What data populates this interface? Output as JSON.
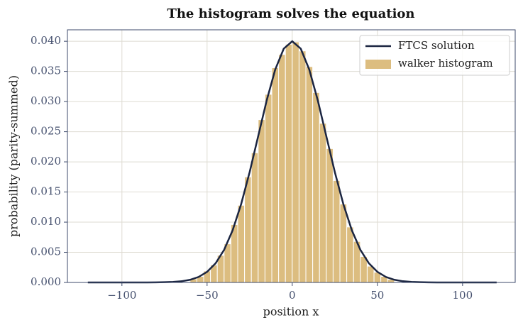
{
  "chart_data": {
    "type": "histogram",
    "title": "The histogram solves the equation",
    "xlabel": "position x",
    "ylabel": "probability (parity-summed)",
    "xlim": [
      -132,
      130.9
    ],
    "ylim": [
      0,
      0.0419
    ],
    "xticks": [
      {
        "value": -100,
        "label": "−100"
      },
      {
        "value": -50,
        "label": "−50"
      },
      0,
      50,
      100
    ],
    "yticks": [
      {
        "value": 0,
        "label": "0.000"
      },
      {
        "value": 0.005,
        "label": "0.005"
      },
      {
        "value": 0.01,
        "label": "0.010"
      },
      {
        "value": 0.015,
        "label": "0.015"
      },
      {
        "value": 0.02,
        "label": "0.020"
      },
      {
        "value": 0.025,
        "label": "0.025"
      },
      {
        "value": 0.03,
        "label": "0.030"
      },
      {
        "value": 0.035,
        "label": "0.035"
      },
      {
        "value": 0.04,
        "label": "0.040"
      }
    ],
    "grid": true,
    "legend": "upper right",
    "series": [
      {
        "name": "FTCS solution",
        "type": "line",
        "color": "#1b2541",
        "x": [
          -120,
          -115,
          -110,
          -105,
          -100,
          -95,
          -90,
          -85,
          -80,
          -75,
          -70,
          -65,
          -60,
          -55,
          -50,
          -45,
          -40,
          -35,
          -30,
          -25,
          -20,
          -15,
          -10,
          -5,
          0,
          5,
          10,
          15,
          20,
          25,
          30,
          35,
          40,
          45,
          50,
          55,
          60,
          65,
          70,
          75,
          80,
          85,
          90,
          95,
          100,
          105,
          110,
          115,
          120
        ],
        "values": [
          0,
          0,
          0,
          0,
          0,
          0,
          0,
          0,
          1e-05,
          4e-05,
          9e-05,
          0.0002,
          0.00044,
          0.00091,
          0.00176,
          0.00318,
          0.00541,
          0.00865,
          0.01299,
          0.01831,
          0.02426,
          0.03019,
          0.0353,
          0.03877,
          0.04,
          0.03877,
          0.0353,
          0.03019,
          0.02426,
          0.01831,
          0.01299,
          0.00865,
          0.00541,
          0.00318,
          0.00176,
          0.00091,
          0.00044,
          0.0002,
          9e-05,
          4e-05,
          1e-05,
          0,
          0,
          0,
          0,
          0,
          0,
          0,
          0
        ]
      },
      {
        "name": "walker histogram",
        "type": "histogram",
        "color": "#dcbd80",
        "bins": [
          -60,
          -56,
          -52,
          -48,
          -44,
          -40,
          -36,
          -32,
          -28,
          -24,
          -20,
          -16,
          -12,
          -8,
          -4,
          0,
          4,
          8,
          12,
          16,
          20,
          24,
          28,
          32,
          36,
          40,
          44,
          48,
          52,
          56,
          60
        ],
        "values": [
          0.0006,
          0.001,
          0.0019,
          0.0029,
          0.0045,
          0.0064,
          0.0096,
          0.0128,
          0.0175,
          0.0215,
          0.027,
          0.0312,
          0.0356,
          0.0378,
          0.0395,
          0.0399,
          0.0384,
          0.0358,
          0.0315,
          0.0264,
          0.0222,
          0.0169,
          0.013,
          0.0092,
          0.0068,
          0.0043,
          0.0027,
          0.0017,
          0.001,
          0.0005
        ]
      }
    ]
  }
}
